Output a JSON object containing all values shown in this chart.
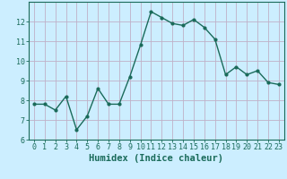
{
  "x": [
    0,
    1,
    2,
    3,
    4,
    5,
    6,
    7,
    8,
    9,
    10,
    11,
    12,
    13,
    14,
    15,
    16,
    17,
    18,
    19,
    20,
    21,
    22,
    23
  ],
  "y": [
    7.8,
    7.8,
    7.5,
    8.2,
    6.5,
    7.2,
    8.6,
    7.8,
    7.8,
    9.2,
    10.8,
    12.5,
    12.2,
    11.9,
    11.8,
    12.1,
    11.7,
    11.1,
    9.3,
    9.7,
    9.3,
    9.5,
    8.9,
    8.8
  ],
  "xlabel": "Humidex (Indice chaleur)",
  "line_color": "#1a6b5a",
  "marker": "o",
  "marker_size": 2,
  "bg_color": "#cceeff",
  "grid_color": "#c0b0c8",
  "ylim": [
    6,
    13
  ],
  "xlim": [
    -0.5,
    23.5
  ],
  "yticks": [
    6,
    7,
    8,
    9,
    10,
    11,
    12
  ],
  "xticks": [
    0,
    1,
    2,
    3,
    4,
    5,
    6,
    7,
    8,
    9,
    10,
    11,
    12,
    13,
    14,
    15,
    16,
    17,
    18,
    19,
    20,
    21,
    22,
    23
  ],
  "tick_label_fontsize": 6.0,
  "xlabel_fontsize": 7.5,
  "tick_color": "#1a6b5a",
  "label_color": "#1a6b5a",
  "spine_color": "#1a6b5a",
  "linewidth": 1.0
}
